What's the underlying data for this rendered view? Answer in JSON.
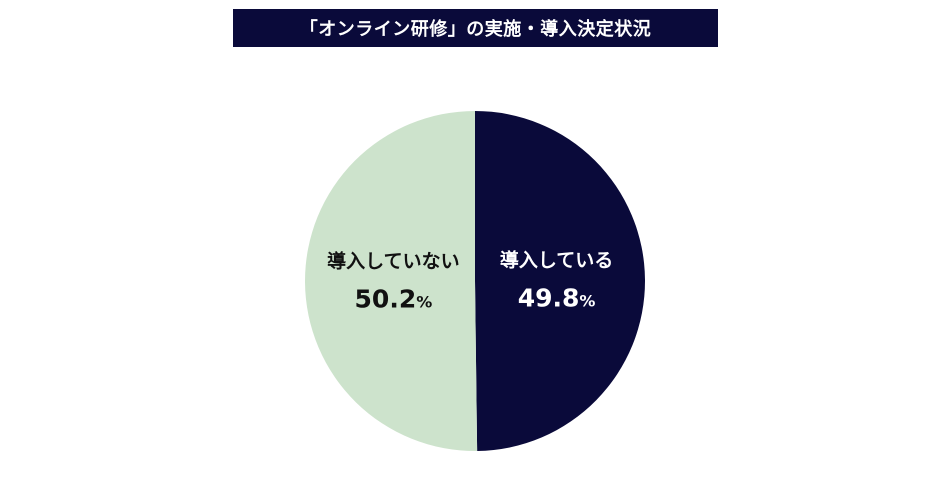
{
  "chart_data": {
    "type": "pie",
    "title": "「オンライン研修」の実施・導入決定状況",
    "categories": [
      "導入している",
      "導入していない"
    ],
    "values": [
      49.8,
      50.2
    ],
    "unit": "%",
    "colors": [
      "#0a0a3a",
      "#cde3cc"
    ],
    "label_colors": [
      "#ffffff",
      "#111111"
    ],
    "start": "12 o'clock",
    "direction": "clockwise",
    "legend": "none"
  }
}
